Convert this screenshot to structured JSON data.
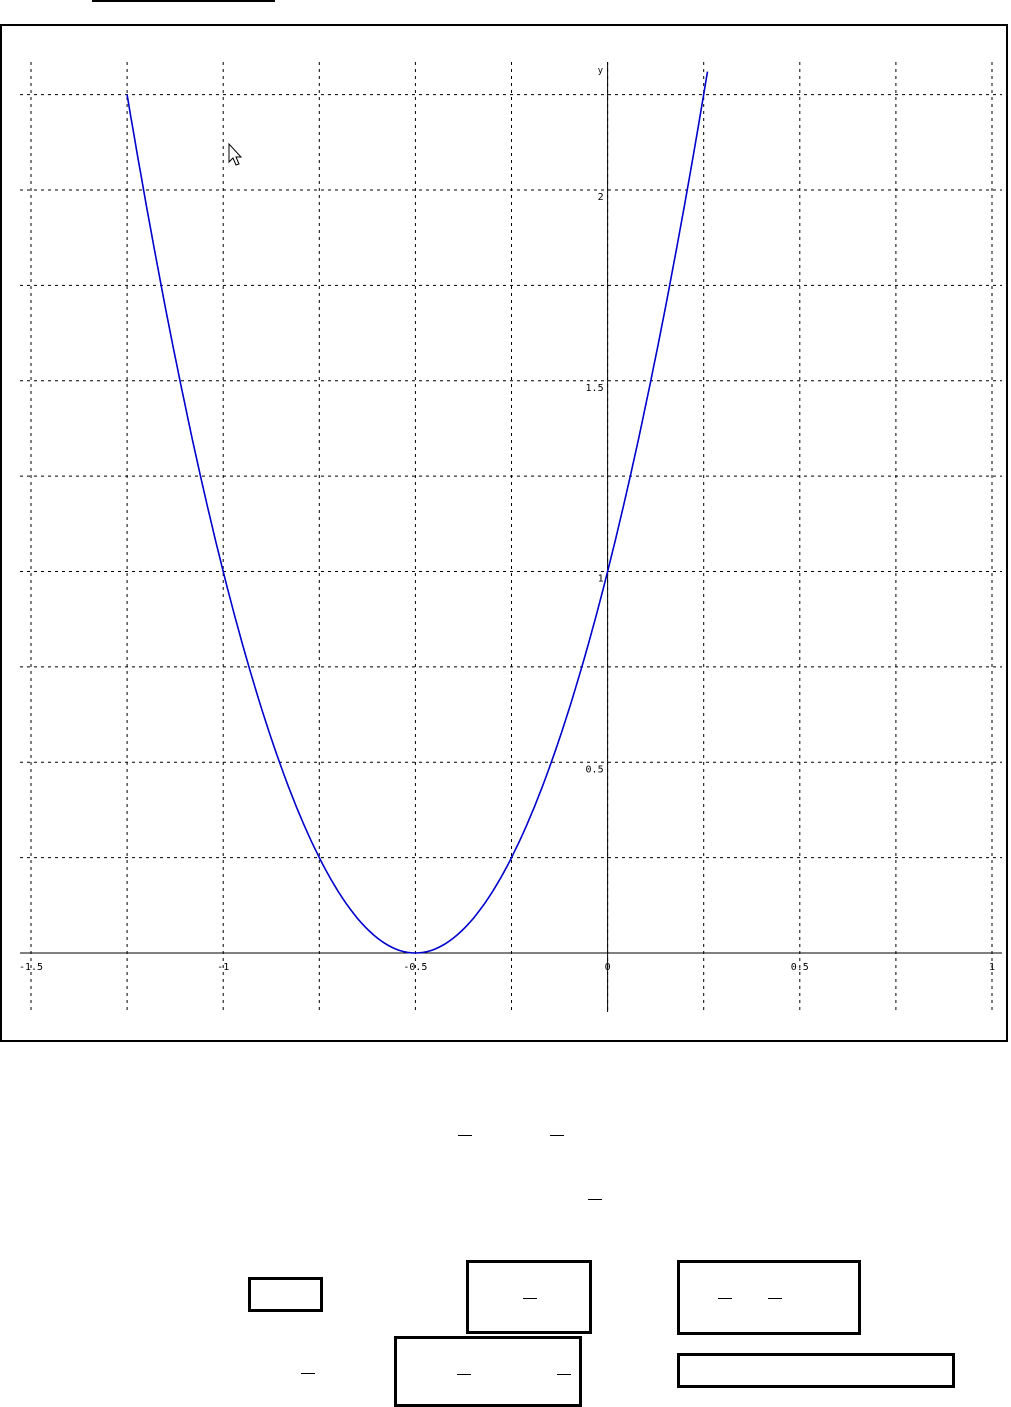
{
  "chart_data": {
    "type": "line",
    "title": "",
    "xlabel": "",
    "ylabel": "y",
    "xlim": [
      -1.5,
      1.0
    ],
    "ylim": [
      0,
      2.25
    ],
    "grid": true,
    "x_ticks": [
      -1.5,
      -1.25,
      -1,
      -0.75,
      -0.5,
      -0.25,
      0,
      0.25,
      0.5,
      0.75,
      1
    ],
    "x_tick_labels": [
      "-1.5",
      "-1",
      "-0.5",
      "0",
      "0.5",
      "1"
    ],
    "x_tick_label_values": [
      -1.5,
      -1,
      -0.5,
      0,
      0.5,
      1
    ],
    "y_ticks": [
      0.25,
      0.5,
      0.75,
      1,
      1.25,
      1.5,
      1.75,
      2,
      2.25
    ],
    "y_tick_labels": [
      "0.5",
      "1",
      "1.5",
      "2"
    ],
    "y_tick_label_values": [
      0.5,
      1,
      1.5,
      2
    ],
    "series": [
      {
        "color": "#0000cc",
        "x": [
          -1.25,
          -1.2,
          -1.1,
          -1.0,
          -0.9,
          -0.8,
          -0.7,
          -0.6,
          -0.5,
          -0.4,
          -0.3,
          -0.2,
          -0.1,
          0.0,
          0.1,
          0.2,
          0.26
        ],
        "y": [
          2.25,
          2.05,
          1.69,
          1.0,
          0.64,
          0.36,
          0.16,
          0.04,
          0.0,
          0.04,
          0.16,
          0.36,
          0.64,
          1.0,
          1.44,
          1.96,
          2.31
        ]
      }
    ]
  }
}
